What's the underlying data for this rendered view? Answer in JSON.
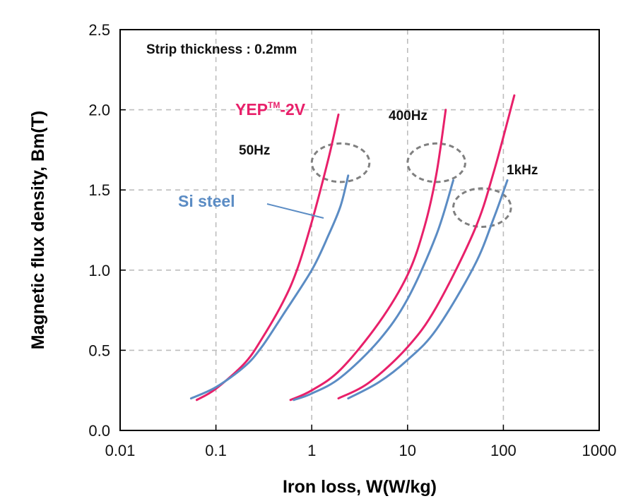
{
  "chart_data": {
    "type": "line",
    "annotation": "Strip thickness : 0.2mm",
    "xlabel": "Iron loss, W(W/kg)",
    "ylabel": "Magnetic flux density, Bm(T)",
    "x_scale": "log",
    "xlim": [
      0.01,
      1000
    ],
    "ylim": [
      0,
      2.5
    ],
    "x_ticks": [
      0.01,
      0.1,
      1,
      10,
      100,
      1000
    ],
    "x_tick_labels": [
      "0.01",
      "0.1",
      "1",
      "10",
      "100",
      "1000"
    ],
    "y_ticks": [
      0,
      0.5,
      1.0,
      1.5,
      2.0,
      2.5
    ],
    "y_tick_labels": [
      "0.0",
      "0.5",
      "1.0",
      "1.5",
      "2.0",
      "2.5"
    ],
    "grid": true,
    "brand_label": "YEP",
    "brand_tm": "TM",
    "brand_suffix": "-2V",
    "si_label": "Si steel",
    "freq_labels": [
      "50Hz",
      "400Hz",
      "1kHz"
    ],
    "colors": {
      "yep": "#e8206a",
      "si": "#5b8cc4",
      "grid": "#bdbdbd",
      "ellipse": "#808080"
    },
    "series": [
      {
        "name": "YEP-2V 50Hz",
        "group": "yep",
        "points": [
          [
            0.063,
            0.19
          ],
          [
            0.1,
            0.26
          ],
          [
            0.2,
            0.42
          ],
          [
            0.3,
            0.57
          ],
          [
            0.5,
            0.8
          ],
          [
            0.7,
            1.0
          ],
          [
            1.0,
            1.3
          ],
          [
            1.5,
            1.7
          ],
          [
            1.9,
            1.97
          ]
        ]
      },
      {
        "name": "Si steel 50Hz",
        "group": "si",
        "points": [
          [
            0.055,
            0.2
          ],
          [
            0.1,
            0.27
          ],
          [
            0.2,
            0.4
          ],
          [
            0.3,
            0.52
          ],
          [
            0.5,
            0.72
          ],
          [
            1.0,
            1.0
          ],
          [
            1.5,
            1.22
          ],
          [
            2.0,
            1.4
          ],
          [
            2.4,
            1.59
          ]
        ]
      },
      {
        "name": "YEP-2V 400Hz",
        "group": "yep",
        "points": [
          [
            0.6,
            0.19
          ],
          [
            1,
            0.25
          ],
          [
            2,
            0.38
          ],
          [
            5,
            0.67
          ],
          [
            10,
            0.97
          ],
          [
            15,
            1.27
          ],
          [
            20,
            1.6
          ],
          [
            25,
            2.0
          ]
        ]
      },
      {
        "name": "Si steel 400Hz",
        "group": "si",
        "points": [
          [
            0.65,
            0.19
          ],
          [
            1,
            0.23
          ],
          [
            2,
            0.33
          ],
          [
            5,
            0.56
          ],
          [
            10,
            0.82
          ],
          [
            20,
            1.22
          ],
          [
            30,
            1.56
          ]
        ]
      },
      {
        "name": "YEP-2V 1kHz",
        "group": "yep",
        "points": [
          [
            1.9,
            0.2
          ],
          [
            4,
            0.3
          ],
          [
            10,
            0.52
          ],
          [
            20,
            0.77
          ],
          [
            50,
            1.25
          ],
          [
            80,
            1.62
          ],
          [
            130,
            2.09
          ]
        ]
      },
      {
        "name": "Si steel 1kHz",
        "group": "si",
        "points": [
          [
            2.4,
            0.2
          ],
          [
            5,
            0.3
          ],
          [
            10,
            0.44
          ],
          [
            20,
            0.63
          ],
          [
            50,
            1.03
          ],
          [
            80,
            1.33
          ],
          [
            110,
            1.56
          ]
        ]
      }
    ]
  }
}
